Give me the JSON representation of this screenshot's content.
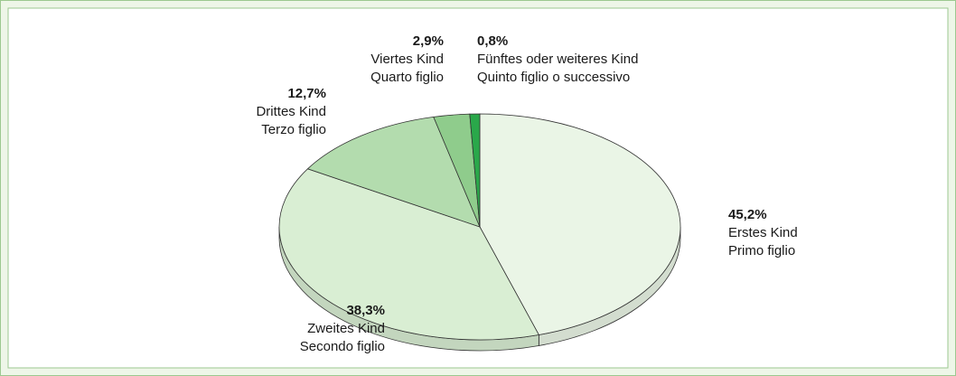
{
  "chart_data": {
    "type": "pie",
    "categories": [
      [
        "Erstes Kind",
        "Primo figlio"
      ],
      [
        "Zweites Kind",
        "Secondo figlio"
      ],
      [
        "Drittes Kind",
        "Terzo figlio"
      ],
      [
        "Viertes Kind",
        "Quarto figlio"
      ],
      [
        "Fünftes oder weiteres Kind",
        "Quinto figlio o successivo"
      ]
    ],
    "values": [
      45.2,
      38.3,
      12.7,
      2.9,
      0.8
    ],
    "value_labels": [
      "45,2%",
      "38,3%",
      "12,7%",
      "2,9%",
      "0,8%"
    ],
    "colors": [
      "#eaf5e6",
      "#d9eed3",
      "#b3dcae",
      "#8fcc8c",
      "#2aa84a"
    ]
  }
}
